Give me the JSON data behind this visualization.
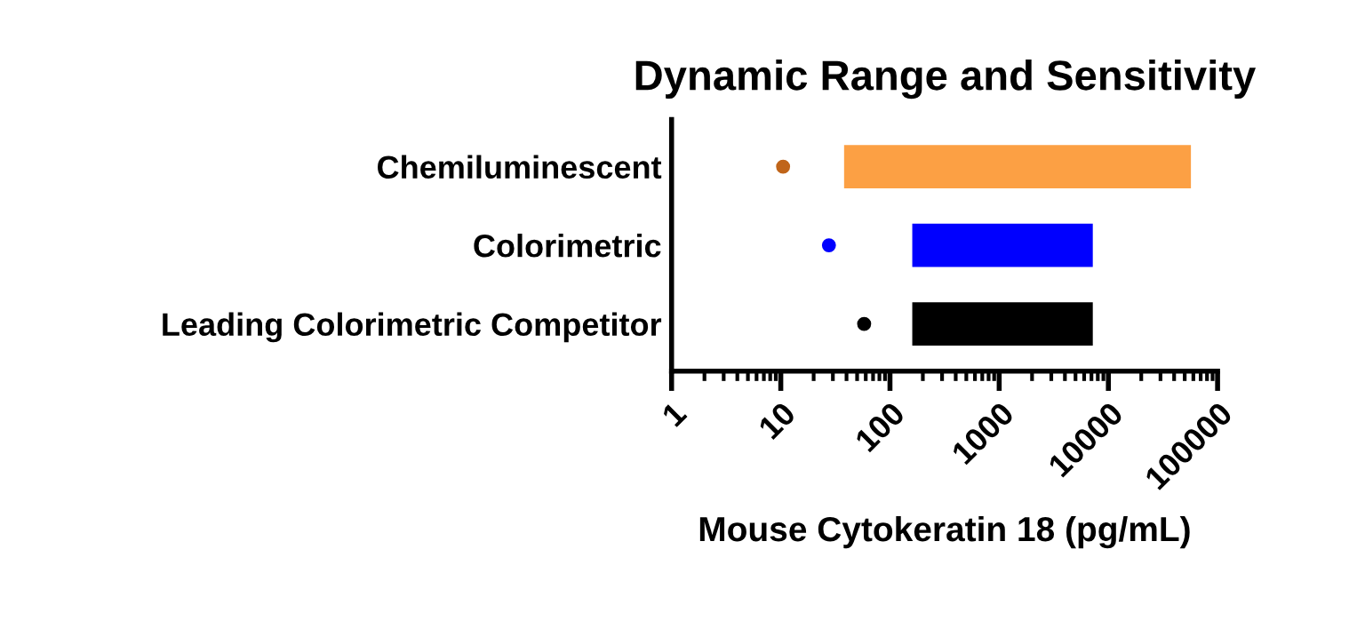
{
  "chart_data": {
    "type": "bar",
    "orientation": "horizontal",
    "title": "Dynamic Range and Sensitivity",
    "xlabel": "Mouse Cytokeratin 18 (pg/mL)",
    "categories": [
      "Chemiluminescent",
      "Colorimetric",
      "Leading Colorimetric Competitor"
    ],
    "log": "x",
    "xlim": [
      1,
      100000
    ],
    "xticks": [
      1,
      10,
      100,
      1000,
      10000,
      100000
    ],
    "grid": false,
    "legend": false,
    "series": [
      {
        "colors": [
          "#fca044",
          "#0000ff",
          "#000000"
        ],
        "base": [
          38,
          160,
          160
        ],
        "values": [
          56962,
          7040,
          7040
        ]
      },
      {
        "type": "scatter",
        "colors": [
          "#c0651a",
          "#0000ff",
          "#000000"
        ],
        "values": [
          10.5,
          27.6,
          58
        ],
        "marker": "circle"
      }
    ]
  }
}
